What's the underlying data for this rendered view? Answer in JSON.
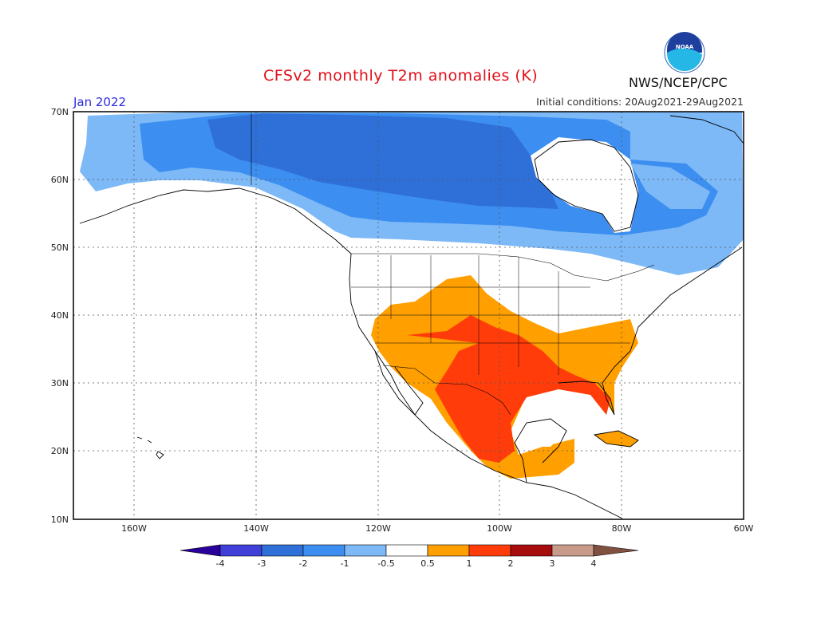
{
  "header": {
    "title": "CFSv2 monthly T2m anomalies (K)",
    "agency": "NWS/NCEP/CPC",
    "logo_text": "NOAA",
    "month": "Jan 2022",
    "initial_conditions": "Initial conditions: 20Aug2021-29Aug2021"
  },
  "axes": {
    "lat_labels": [
      "70N",
      "60N",
      "50N",
      "40N",
      "30N",
      "20N",
      "10N"
    ],
    "lon_labels": [
      "160W",
      "140W",
      "120W",
      "100W",
      "80W",
      "60W"
    ]
  },
  "legend": {
    "bins": [
      {
        "color": "#2a009a"
      },
      {
        "color": "#4040d8"
      },
      {
        "color": "#2f6fd8"
      },
      {
        "color": "#3c8ef0"
      },
      {
        "color": "#7db9f6"
      },
      {
        "color": "#ffffff"
      },
      {
        "color": "#ff9f00"
      },
      {
        "color": "#ff3c0a"
      },
      {
        "color": "#a80d0d"
      },
      {
        "color": "#c79a8a"
      },
      {
        "color": "#805040"
      }
    ],
    "tick_labels": [
      "-4",
      "-3",
      "-2",
      "-1",
      "-0.5",
      "0.5",
      "1",
      "2",
      "3",
      "4"
    ]
  }
}
